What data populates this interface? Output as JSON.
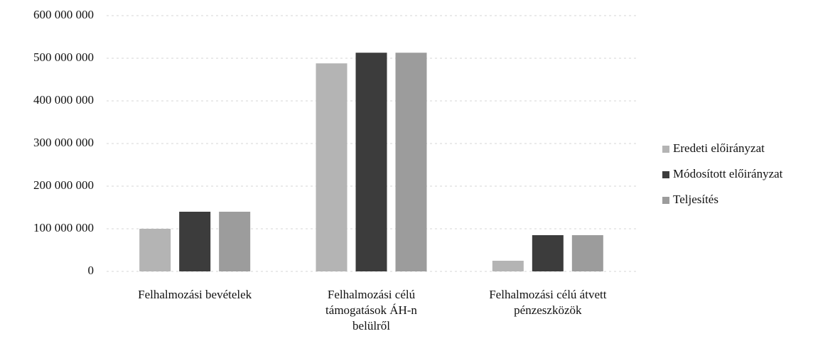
{
  "chart_data": {
    "type": "bar",
    "categories": [
      "Felhalmozási bevételek",
      "Felhalmozási célú támogatások ÁH-n belülről",
      "Felhalmozási célú átvett pénzeszközök"
    ],
    "series": [
      {
        "name": "Eredeti előirányzat",
        "color": "#b4b4b4",
        "values": [
          100000000,
          488000000,
          25000000
        ]
      },
      {
        "name": "Módosított előirányzat",
        "color": "#3c3c3c",
        "values": [
          140000000,
          513000000,
          85000000
        ]
      },
      {
        "name": "Teljesítés",
        "color": "#9c9c9c",
        "values": [
          140000000,
          513000000,
          85000000
        ]
      }
    ],
    "ylim": [
      0,
      600000000
    ],
    "yticks": [
      0,
      {
        "value": 100000000,
        "label": "100 000 000"
      },
      {
        "value": 200000000,
        "label": "200 000 000"
      },
      {
        "value": 300000000,
        "label": "300 000 000"
      },
      {
        "value": 400000000,
        "label": "400 000 000"
      },
      {
        "value": 500000000,
        "label": "500 000 000"
      },
      {
        "value": 600000000,
        "label": "600 000 000"
      }
    ],
    "grid": true,
    "legend": "right"
  }
}
